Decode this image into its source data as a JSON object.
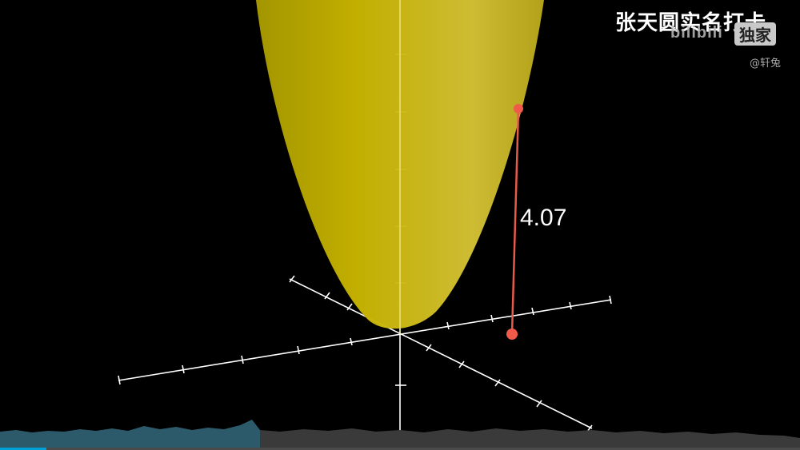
{
  "overlay": {
    "title": "张天圆实名打卡",
    "logo_text": "bilibili",
    "badge_text": "独家",
    "uploader": "@轩兔"
  },
  "plot": {
    "type": "3d-surface",
    "surface": "paraboloid",
    "surface_color": "#c8b400",
    "axis_color": "#ffffff",
    "point_color": "#f05a4a",
    "segment_color": "#e65a4a",
    "measurement_label": "4.07"
  },
  "player": {
    "waveform_played_color": "#2d5a6a",
    "waveform_unplayed_color": "#3a3a3a",
    "progress_fraction": 0.325
  }
}
